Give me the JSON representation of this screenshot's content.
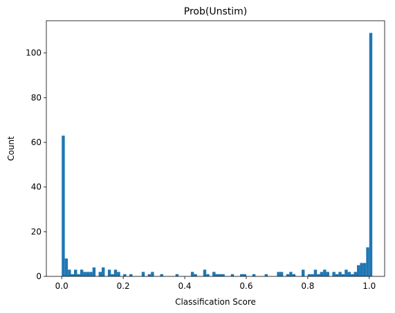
{
  "chart_data": {
    "type": "bar",
    "title": "Prob(Unstim)",
    "xlabel": "Classification Score",
    "ylabel": "Count",
    "xlim": [
      -0.05,
      1.05
    ],
    "ylim": [
      0,
      114.45
    ],
    "grid": false,
    "bar_color": "#1f77b4",
    "xticks": [
      0.0,
      0.2,
      0.4,
      0.6,
      0.8,
      1.0
    ],
    "xtick_labels": [
      "0.0",
      "0.2",
      "0.4",
      "0.6",
      "0.8",
      "1.0"
    ],
    "yticks": [
      0,
      20,
      40,
      60,
      80,
      100
    ],
    "ytick_labels": [
      "0",
      "20",
      "40",
      "60",
      "80",
      "100"
    ],
    "bin_width": 0.01,
    "bin_start": 0.0,
    "values": [
      63,
      8,
      3,
      1,
      3,
      1,
      3,
      2,
      2,
      2,
      4,
      0,
      2,
      4,
      0,
      3,
      1,
      3,
      2,
      0,
      1,
      0,
      1,
      0,
      0,
      0,
      2,
      0,
      1,
      2,
      0,
      0,
      1,
      0,
      0,
      0,
      0,
      1,
      0,
      0,
      0,
      0,
      2,
      1,
      0,
      0,
      3,
      1,
      0,
      2,
      1,
      1,
      1,
      0,
      0,
      1,
      0,
      0,
      1,
      1,
      0,
      0,
      1,
      0,
      0,
      0,
      1,
      0,
      0,
      0,
      2,
      2,
      0,
      1,
      2,
      1,
      0,
      0,
      3,
      0,
      1,
      1,
      3,
      1,
      2,
      3,
      2,
      0,
      2,
      1,
      2,
      1,
      3,
      2,
      1,
      2,
      5,
      6,
      6,
      13,
      109
    ]
  }
}
